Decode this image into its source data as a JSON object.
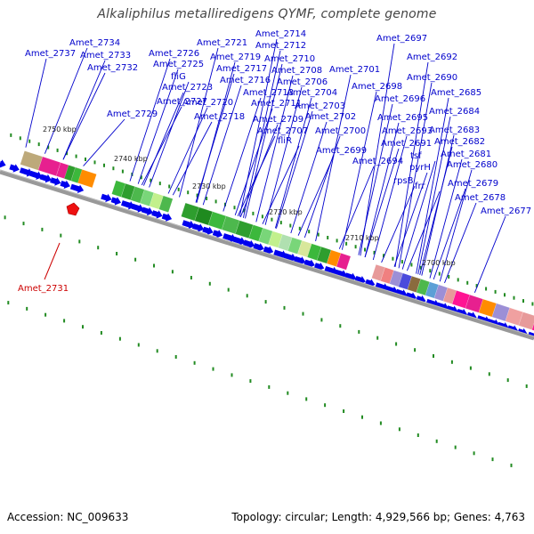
{
  "title": "Alkaliphilus metalliredigens QYMF, complete genome",
  "footer": {
    "accession": "Accession: NC_009633",
    "topology": "Topology: circular; Length: 4,929,566 bp; Genes: 4,763"
  },
  "ticks": [
    "2750 kbp",
    "2740 kbp",
    "2730 kbp",
    "2720 kbp",
    "2710 kbp",
    "2700 kbp"
  ],
  "gene_labels": [
    "Amet_2734",
    "Amet_2737",
    "Amet_2733",
    "Amet_2732",
    "Amet_2726",
    "Amet_2725",
    "fliG",
    "Amet_2723",
    "Amet_2727",
    "Amet_2729",
    "Amet_2721",
    "Amet_2719",
    "Amet_2717",
    "Amet_2716",
    "Amet_2720",
    "Amet_2718",
    "Amet_2714",
    "Amet_2712",
    "Amet_2710",
    "Amet_2708",
    "Amet_2706",
    "Amet_2713",
    "Amet_2711",
    "Amet_2709",
    "Amet_2707",
    "fliR",
    "Amet_2704",
    "Amet_2703",
    "Amet_2702",
    "Amet_2700",
    "Amet_2699",
    "Amet_2701",
    "Amet_2698",
    "Amet_2696",
    "Amet_2695",
    "Amet_2693",
    "Amet_2691",
    "Amet_2694",
    "tsf",
    "pyrH",
    "rpsB",
    "frr",
    "Amet_2697",
    "Amet_2692",
    "Amet_2690",
    "Amet_2685",
    "Amet_2684",
    "Amet_2683",
    "Amet_2682",
    "Amet_2681",
    "Amet_2680",
    "Amet_2679",
    "Amet_2678",
    "Amet_2677"
  ],
  "highlight_label": "Amet_2731",
  "colors": {
    "label": "#0000cc",
    "highlight": "#cc0000",
    "arrow": "#0000ee",
    "tick_mark": "#228b22",
    "backbone": "#888888"
  }
}
